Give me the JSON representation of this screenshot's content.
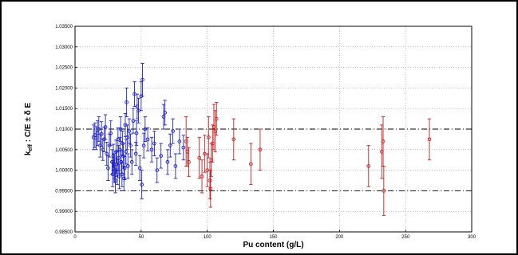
{
  "chart_data": {
    "type": "scatter",
    "xlabel": "Pu content (g/L)",
    "ylabel_main": "k",
    "ylabel_sub": "eff",
    "ylabel_rest": " : C/E ± δ E",
    "xlim": [
      0,
      300
    ],
    "ylim": [
      0.985,
      1.035
    ],
    "x_ticks": [
      "0",
      "50",
      "100",
      "150",
      "200",
      "250",
      "300"
    ],
    "y_ticks": [
      "0.98500",
      "0.99000",
      "0.99500",
      "1.00000",
      "1.00500",
      "1.01000",
      "1.01500",
      "1.02000",
      "1.02500",
      "1.03000",
      "1.03500"
    ],
    "grid": true,
    "reference_lines": [
      1.01,
      0.995
    ],
    "colors": {
      "blue": "#1f24c4",
      "red": "#c81e1e",
      "grid": "#9a9a9a"
    },
    "series": [
      {
        "marker": "circle",
        "color": "blue",
        "points": [
          [
            14,
            1.008,
            0.003
          ],
          [
            15,
            1.0085,
            0.003
          ],
          [
            16,
            1.0078,
            0.0028
          ],
          [
            17,
            1.009,
            0.003
          ],
          [
            18,
            1.01,
            0.003
          ],
          [
            19,
            1.006,
            0.0028
          ],
          [
            20,
            1.0088,
            0.003
          ],
          [
            21,
            1.005,
            0.0026
          ],
          [
            22,
            1.0075,
            0.003
          ],
          [
            23,
            1.0105,
            0.003
          ],
          [
            24,
            1.004,
            0.0028
          ],
          [
            25,
            1.0005,
            0.003
          ],
          [
            26,
            1.006,
            0.0028
          ],
          [
            27,
            1.009,
            0.003
          ],
          [
            28,
            1.002,
            0.003
          ],
          [
            28.5,
            0.999,
            0.003
          ],
          [
            29,
            1.0035,
            0.0028
          ],
          [
            29.5,
            1.001,
            0.003
          ],
          [
            30,
            1.0,
            0.003
          ],
          [
            30.5,
            0.9975,
            0.003
          ],
          [
            31,
            1.0045,
            0.0028
          ],
          [
            31.5,
            1.0015,
            0.003
          ],
          [
            32,
            0.9995,
            0.003
          ],
          [
            32.5,
            1.0075,
            0.0028
          ],
          [
            33,
            1.003,
            0.003
          ],
          [
            33.5,
            0.9985,
            0.003
          ],
          [
            34,
            1.005,
            0.003
          ],
          [
            34.5,
            1.01,
            0.003
          ],
          [
            35,
            1.002,
            0.0028
          ],
          [
            35.5,
            0.999,
            0.003
          ],
          [
            36,
            1.0065,
            0.003
          ],
          [
            36.5,
            1.0035,
            0.003
          ],
          [
            37,
            0.998,
            0.003
          ],
          [
            37.5,
            1.0005,
            0.0028
          ],
          [
            38,
            1.011,
            0.0028
          ],
          [
            38.5,
            1.0045,
            0.003
          ],
          [
            39,
            1.0165,
            0.0035
          ],
          [
            39.5,
            1.008,
            0.003
          ],
          [
            40,
            1.001,
            0.003
          ],
          [
            41,
            1.0095,
            0.003
          ],
          [
            42,
            1.006,
            0.0028
          ],
          [
            43,
            1.002,
            0.003
          ],
          [
            44,
            1.012,
            0.003
          ],
          [
            45,
            1.0185,
            0.003
          ],
          [
            46,
            1.004,
            0.0028
          ],
          [
            46.5,
            1.009,
            0.003
          ],
          [
            47,
            1.0155,
            0.003
          ],
          [
            48,
            1.0145,
            0.003
          ],
          [
            49,
            1.0005,
            0.003
          ],
          [
            50,
            1.018,
            0.0035
          ],
          [
            50.5,
            0.9965,
            0.0035
          ],
          [
            51,
            1.022,
            0.004
          ],
          [
            52,
            1.006,
            0.003
          ],
          [
            53,
            1.01,
            0.003
          ],
          [
            55,
            1.0075,
            0.0028
          ],
          [
            58,
            1.005,
            0.003
          ],
          [
            60,
            1.0065,
            0.003
          ],
          [
            62,
            1.0,
            0.003
          ],
          [
            65,
            1.0035,
            0.003
          ],
          [
            67,
            1.013,
            0.003
          ],
          [
            68,
            1.014,
            0.003
          ],
          [
            70,
            1.002,
            0.003
          ],
          [
            72,
            1.006,
            0.0028
          ],
          [
            74,
            1.0095,
            0.003
          ],
          [
            76,
            1.001,
            0.003
          ],
          [
            79,
            1.007,
            0.003
          ],
          [
            82,
            1.0055,
            0.003
          ]
        ]
      },
      {
        "marker": "circle",
        "color": "red",
        "points": [
          [
            84,
            1.007,
            0.006
          ],
          [
            85,
            1.0045,
            0.0035
          ],
          [
            86,
            1.002,
            0.0035
          ],
          [
            94,
            1.003,
            0.005
          ],
          [
            96,
            0.9985,
            0.004
          ],
          [
            98,
            1.004,
            0.0045
          ],
          [
            100,
            1.0,
            0.004
          ],
          [
            101,
            1.008,
            0.005
          ],
          [
            102,
            0.9975,
            0.0045
          ],
          [
            102.5,
            0.9955,
            0.0045
          ],
          [
            103,
            1.0025,
            0.004
          ],
          [
            104,
            1.0065,
            0.0045
          ],
          [
            105,
            1.0105,
            0.0055
          ],
          [
            106,
            1.0095,
            0.005
          ],
          [
            107,
            1.0125,
            0.004
          ],
          [
            120,
            1.0075,
            0.005
          ],
          [
            133,
            1.0015,
            0.005
          ],
          [
            140,
            1.005,
            0.005
          ],
          [
            222,
            1.001,
            0.005
          ],
          [
            232,
            1.0045,
            0.0065
          ],
          [
            233,
            1.007,
            0.006
          ],
          [
            233.5,
            0.995,
            0.006
          ],
          [
            268,
            1.0075,
            0.005
          ]
        ]
      }
    ]
  }
}
